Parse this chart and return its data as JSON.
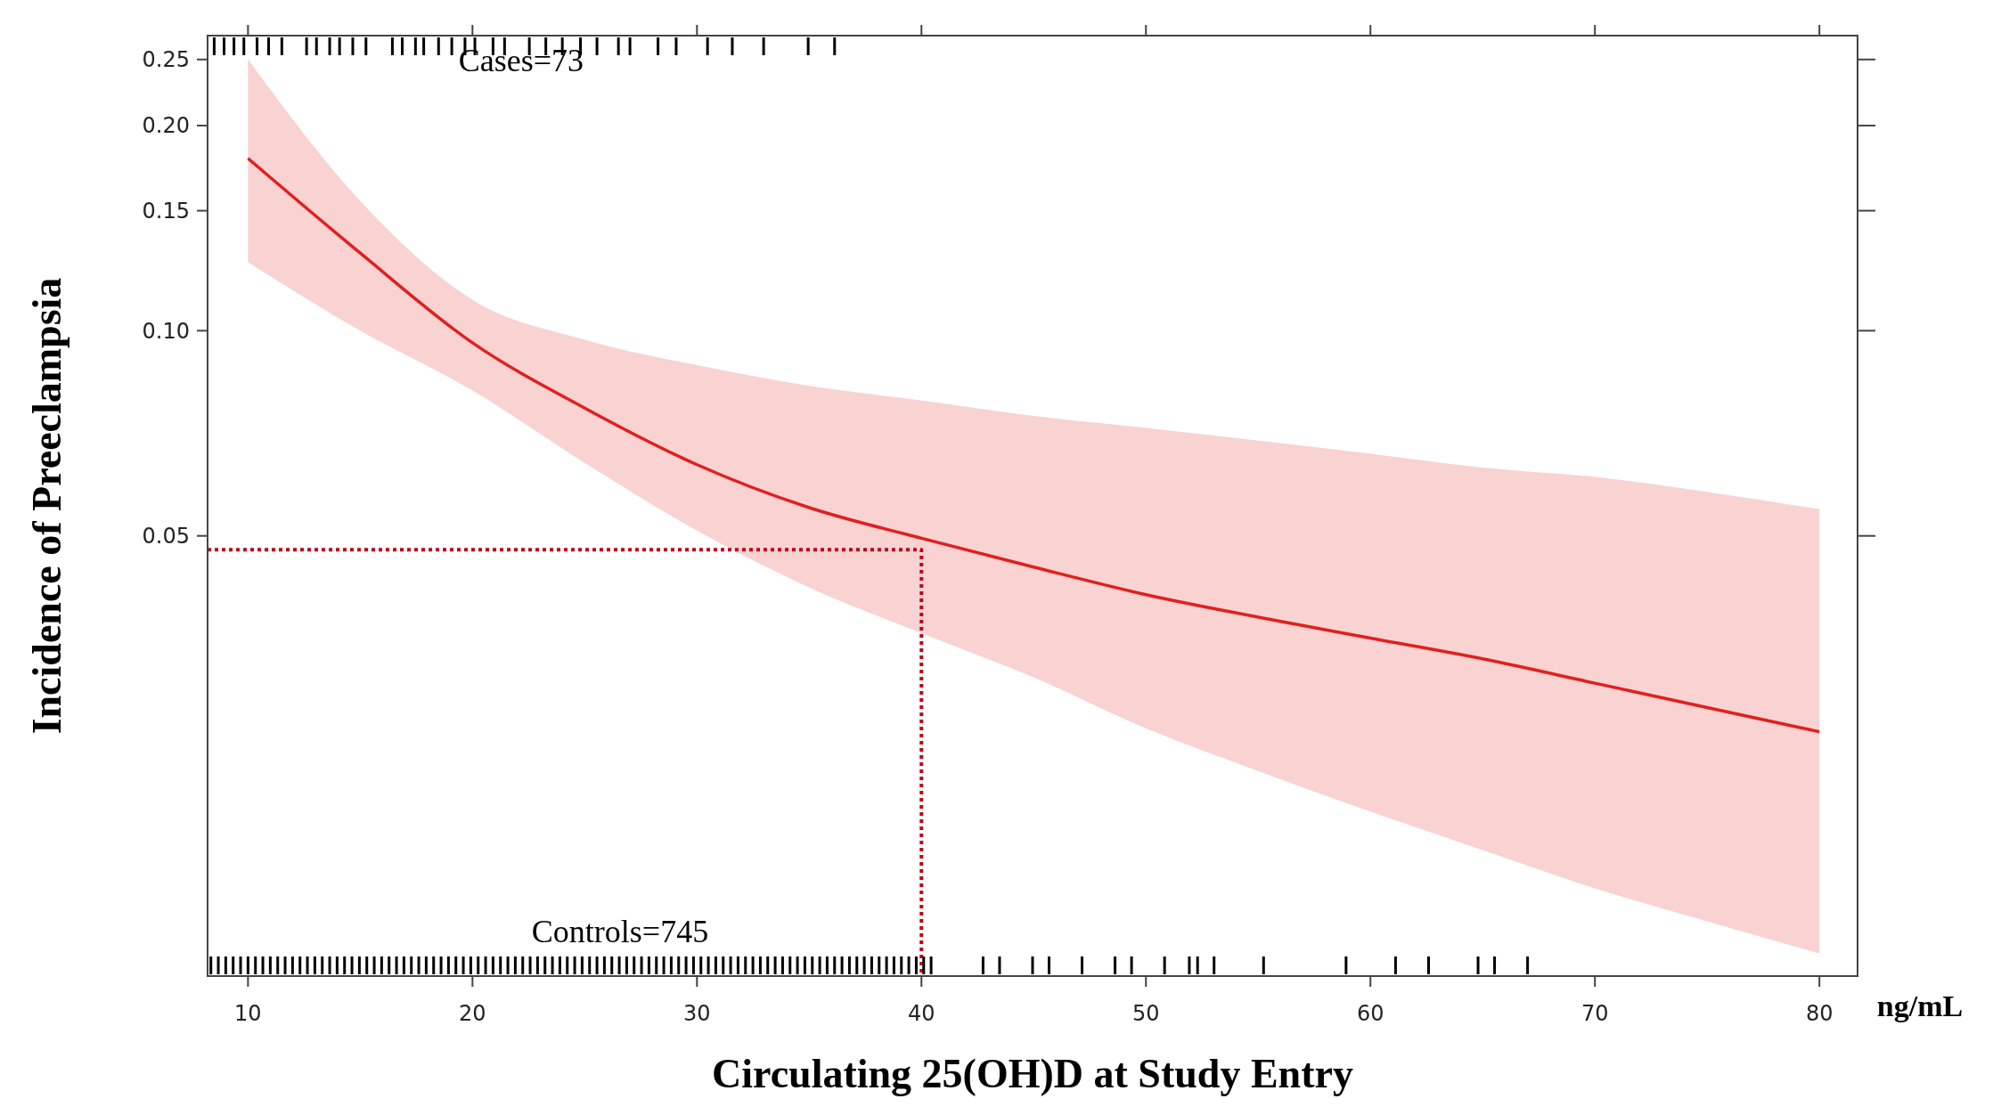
{
  "chart_data": {
    "type": "line",
    "xlabel": "Circulating 25(OH)D at Study Entry",
    "ylabel": "Incidence of Preeclampsia",
    "log": "y",
    "grid": false,
    "xlim": [
      8.2,
      81.7
    ],
    "ylim": [
      0.0113,
      0.271
    ],
    "xticks": [
      10,
      20,
      30,
      40,
      50,
      60,
      70,
      80
    ],
    "yticks": [
      {
        "value": 0.05,
        "label": "0.05"
      },
      {
        "value": 0.1,
        "label": "0.10"
      },
      {
        "value": 0.15,
        "label": "0.15"
      },
      {
        "value": 0.2,
        "label": "0.20"
      },
      {
        "value": 0.25,
        "label": "0.25"
      }
    ],
    "annotations": [
      "Cases=73",
      "Controls=745",
      "ng/mL"
    ],
    "series": [
      {
        "color": "#e0201e",
        "line_style": "solid",
        "marker": "none",
        "x": [
          10,
          15,
          20,
          25,
          30,
          35,
          40,
          45,
          50,
          55,
          60,
          65,
          70,
          75,
          80
        ],
        "values": [
          0.179,
          0.13,
          0.096,
          0.077,
          0.0636,
          0.055,
          0.0496,
          0.045,
          0.041,
          0.038,
          0.0354,
          0.033,
          0.0304,
          0.028,
          0.0258
        ],
        "lower": [
          0.126,
          0.1,
          0.0817,
          0.064,
          0.0509,
          0.042,
          0.036,
          0.031,
          0.0261,
          0.0226,
          0.0197,
          0.0173,
          0.0152,
          0.0136,
          0.0122
        ],
        "upper": [
          0.25,
          0.155,
          0.111,
          0.097,
          0.089,
          0.083,
          0.079,
          0.075,
          0.072,
          0.069,
          0.066,
          0.063,
          0.061,
          0.058,
          0.0547
        ]
      },
      {
        "color": "#c0001a",
        "line_style": "dotted",
        "marker": "none",
        "x": [
          8.2,
          40,
          40
        ],
        "values": [
          0.0477,
          0.0477,
          0.0113
        ]
      }
    ]
  }
}
